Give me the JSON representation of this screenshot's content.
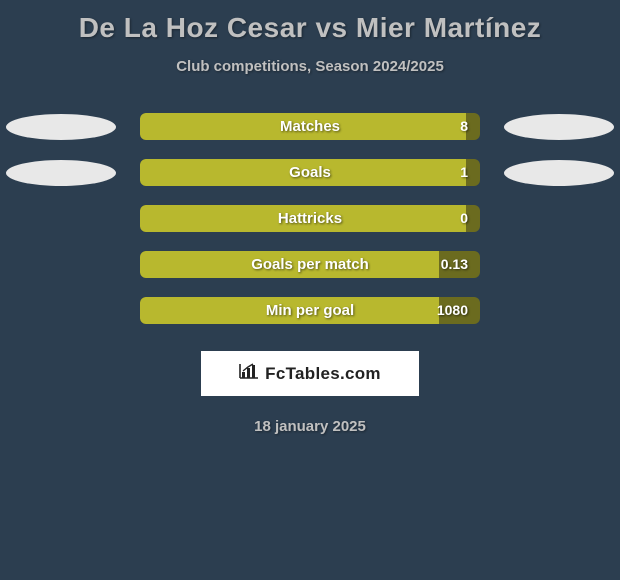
{
  "background_color": "#2c3e50",
  "title": "De La Hoz Cesar vs Mier Martínez",
  "title_color": "#c0c0c0",
  "title_fontsize": 28,
  "subtitle": "Club competitions, Season 2024/2025",
  "subtitle_color": "#c0c0c0",
  "subtitle_fontsize": 15,
  "date": "18 january 2025",
  "logo_text": "FcTables.com",
  "bar_track_color": "#6b6b1f",
  "bar_fill_color": "#b8b82e",
  "ellipse_color": "#e8e8e8",
  "label_color": "#ffffff",
  "rows": [
    {
      "label": "Matches",
      "value": "8",
      "fill_pct": 96,
      "show_left_ellipse": true,
      "show_right_ellipse": true
    },
    {
      "label": "Goals",
      "value": "1",
      "fill_pct": 96,
      "show_left_ellipse": true,
      "show_right_ellipse": true
    },
    {
      "label": "Hattricks",
      "value": "0",
      "fill_pct": 96,
      "show_left_ellipse": false,
      "show_right_ellipse": false
    },
    {
      "label": "Goals per match",
      "value": "0.13",
      "fill_pct": 88,
      "show_left_ellipse": false,
      "show_right_ellipse": false
    },
    {
      "label": "Min per goal",
      "value": "1080",
      "fill_pct": 88,
      "show_left_ellipse": false,
      "show_right_ellipse": false
    }
  ]
}
